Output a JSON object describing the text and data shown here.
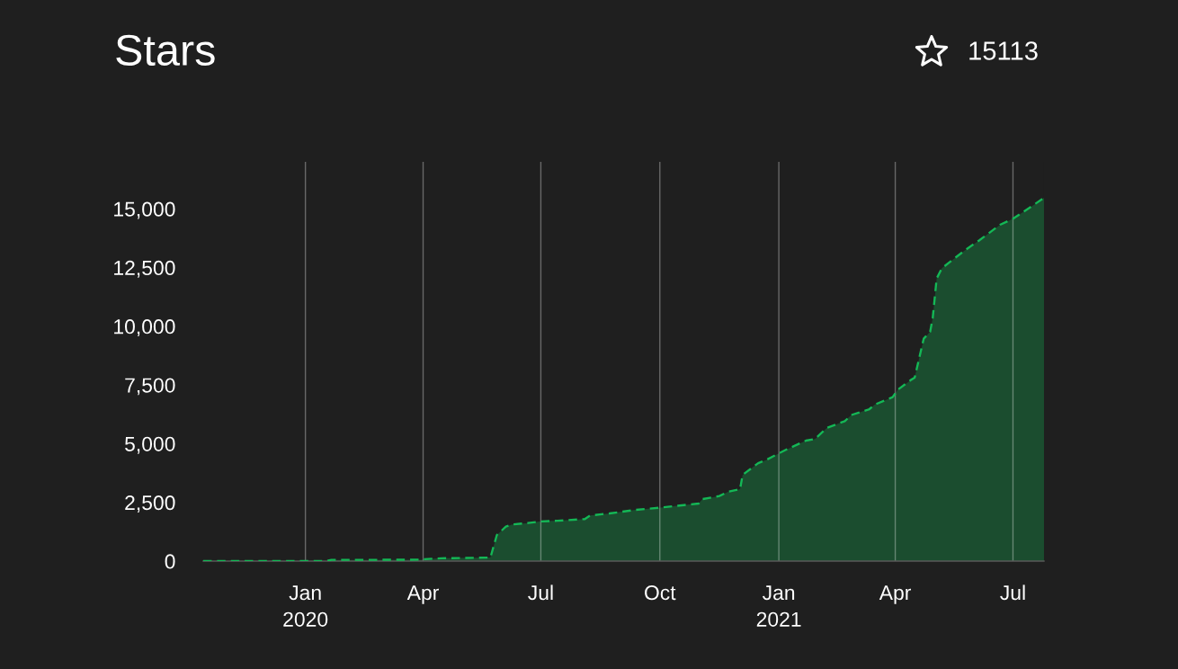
{
  "chart_data": {
    "type": "area",
    "title": "Stars",
    "annotations": [
      "15113"
    ],
    "x": [
      "2019-10-14",
      "2020-01-17",
      "2020-01-21",
      "2020-03-31",
      "2020-04-02",
      "2020-04-15",
      "2020-05-23",
      "2020-05-28",
      "2020-06-04",
      "2020-06-09",
      "2020-06-21",
      "2020-07-01",
      "2020-07-14",
      "2020-08-04",
      "2020-08-08",
      "2020-08-23",
      "2020-09-12",
      "2020-09-30",
      "2020-10-14",
      "2020-10-31",
      "2020-11-03",
      "2020-11-16",
      "2020-11-23",
      "2020-12-02",
      "2020-12-04",
      "2020-12-16",
      "2020-12-22",
      "2020-12-31",
      "2021-01-08",
      "2021-01-22",
      "2021-01-29",
      "2021-02-07",
      "2021-02-21",
      "2021-02-26",
      "2021-03-12",
      "2021-03-16",
      "2021-03-30",
      "2021-04-03",
      "2021-04-13",
      "2021-04-16",
      "2021-04-23",
      "2021-04-28",
      "2021-04-30",
      "2021-05-03",
      "2021-05-07",
      "2021-05-25",
      "2021-06-05",
      "2021-06-21",
      "2021-07-01",
      "2021-07-15",
      "2021-07-25"
    ],
    "series": [
      {
        "color": "#14b856",
        "values": [
          0,
          0,
          50,
          60,
          80,
          120,
          150,
          1110,
          1470,
          1560,
          1620,
          1690,
          1720,
          1790,
          1940,
          2030,
          2180,
          2270,
          2350,
          2450,
          2640,
          2770,
          2960,
          3060,
          3670,
          4170,
          4300,
          4560,
          4780,
          5130,
          5200,
          5670,
          5960,
          6220,
          6470,
          6660,
          6980,
          7300,
          7710,
          7810,
          9470,
          9770,
          10370,
          12030,
          12470,
          13240,
          13660,
          14320,
          14580,
          15090,
          15470
        ]
      }
    ],
    "xlim": [
      "2019-10-14",
      "2021-07-25"
    ],
    "ylim": [
      0,
      17000
    ],
    "xticks": [
      {
        "value": "2020-01-01",
        "label": "Jan\n2020"
      },
      {
        "value": "2020-04-01",
        "label": "Apr"
      },
      {
        "value": "2020-07-01",
        "label": "Jul"
      },
      {
        "value": "2020-10-01",
        "label": "Oct"
      },
      {
        "value": "2021-01-01",
        "label": "Jan\n2021"
      },
      {
        "value": "2021-04-01",
        "label": "Apr"
      },
      {
        "value": "2021-07-01",
        "label": "Jul"
      }
    ],
    "yticks": [
      0,
      {
        "value": 2500,
        "label": "2,500"
      },
      {
        "value": 5000,
        "label": "5,000"
      },
      {
        "value": 7500,
        "label": "7,500"
      },
      {
        "value": 10000,
        "label": "10,000"
      },
      {
        "value": 12500,
        "label": "12,500"
      },
      {
        "value": 15000,
        "label": "15,000"
      }
    ],
    "grid": "x",
    "line_style": "dashed"
  }
}
